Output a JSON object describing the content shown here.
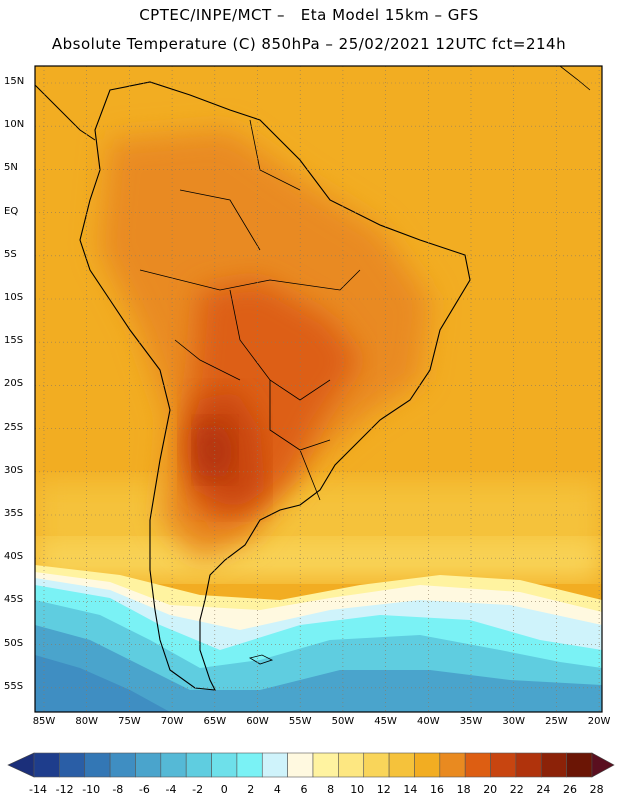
{
  "header": {
    "line1": "CPTEC/INPE/MCT –   Eta Model 15km – GFS",
    "line2": "Absolute Temperature (C) 850hPa – 25/02/2021 12UTC fct=214h"
  },
  "axes": {
    "lat_labels": [
      "15N",
      "10N",
      "5N",
      "EQ",
      "5S",
      "10S",
      "15S",
      "20S",
      "25S",
      "30S",
      "35S",
      "40S",
      "45S",
      "50S",
      "55S"
    ],
    "lon_labels": [
      "85W",
      "80W",
      "75W",
      "70W",
      "65W",
      "60W",
      "55W",
      "50W",
      "45W",
      "40W",
      "35W",
      "30W",
      "25W",
      "20W"
    ]
  },
  "colorbar": {
    "labels": [
      "-14",
      "-12",
      "-10",
      "-8",
      "-6",
      "-4",
      "-2",
      "0",
      "2",
      "4",
      "6",
      "8",
      "10",
      "12",
      "14",
      "16",
      "18",
      "20",
      "22",
      "24",
      "26",
      "28"
    ],
    "colors": [
      "#1e3d8c",
      "#2a5ea6",
      "#3377b5",
      "#3f8ec2",
      "#4aa4cc",
      "#55b9d6",
      "#5fcde0",
      "#6ee0ea",
      "#7af2f5",
      "#cff3fb",
      "#fff9e0",
      "#fff3a0",
      "#fde781",
      "#f9d55a",
      "#f5c23b",
      "#f2ad22",
      "#e98a20",
      "#dd5e12",
      "#c84510",
      "#b0330c",
      "#8c2208",
      "#6b1505"
    ],
    "under_color": "#1b2f7a",
    "over_color": "#5a0f1f"
  }
}
